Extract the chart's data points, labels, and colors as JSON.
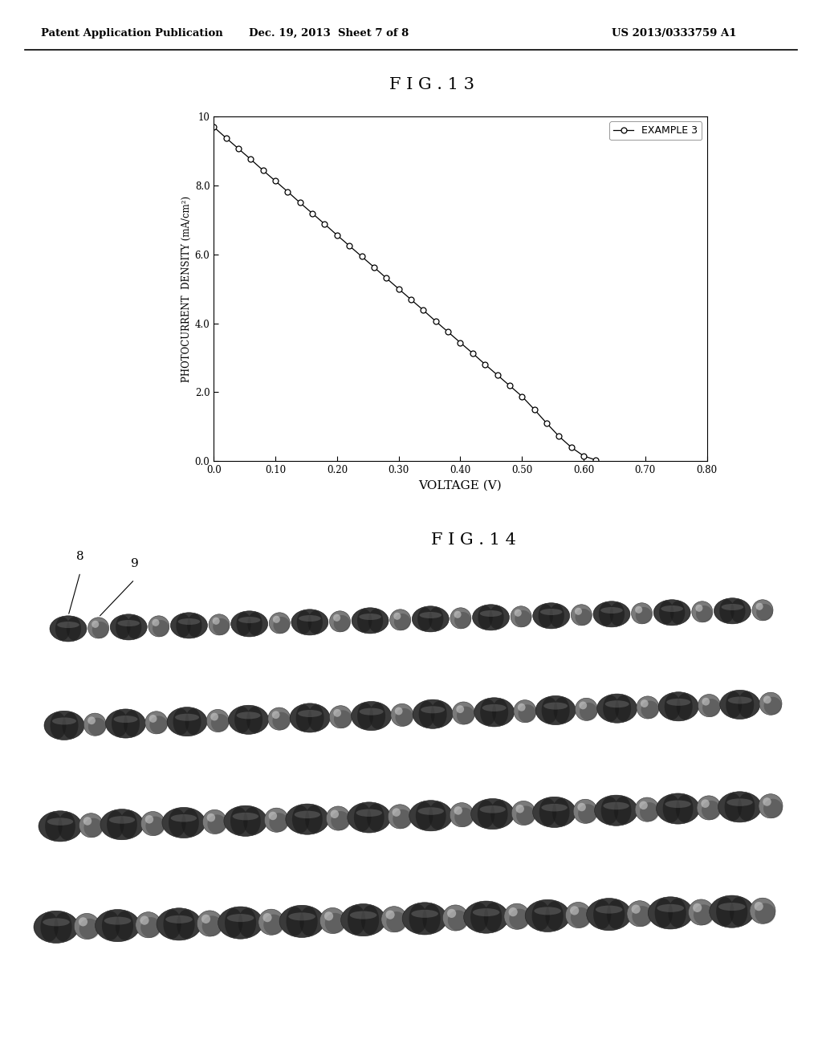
{
  "header_left": "Patent Application Publication",
  "header_mid": "Dec. 19, 2013  Sheet 7 of 8",
  "header_right": "US 2013/0333759 A1",
  "fig13_title": "F I G . 1 3",
  "fig14_title": "F I G . 1 4",
  "xlabel": "VOLTAGE (V)",
  "ylabel": "PHOTOCURRENT  DENSITY (mA/cm²)",
  "legend_label": "EXAMPLE 3",
  "xlim": [
    0.0,
    0.8
  ],
  "ylim": [
    0.0,
    10.0
  ],
  "xticks": [
    0.0,
    0.1,
    0.2,
    0.3,
    0.4,
    0.5,
    0.6,
    0.7,
    0.8
  ],
  "yticks": [
    0.0,
    2.0,
    4.0,
    6.0,
    8.0,
    10.0
  ],
  "xtick_labels": [
    "0.0",
    "0.10",
    "0.20",
    "0.30",
    "0.40",
    "0.50",
    "0.60",
    "0.70",
    "0.80"
  ],
  "ytick_labels": [
    "0.0",
    "2.0",
    "4.0",
    "6.0",
    "8.0",
    "10"
  ],
  "curve_x": [
    0.0,
    0.02,
    0.04,
    0.06,
    0.08,
    0.1,
    0.12,
    0.14,
    0.16,
    0.18,
    0.2,
    0.22,
    0.24,
    0.26,
    0.28,
    0.3,
    0.32,
    0.34,
    0.36,
    0.38,
    0.4,
    0.42,
    0.44,
    0.46,
    0.48,
    0.5,
    0.52,
    0.54,
    0.56,
    0.58,
    0.6,
    0.62
  ],
  "curve_y": [
    9.7,
    9.38,
    9.07,
    8.76,
    8.44,
    8.13,
    7.82,
    7.5,
    7.19,
    6.88,
    6.56,
    6.25,
    5.94,
    5.63,
    5.31,
    5.0,
    4.69,
    4.38,
    4.06,
    3.75,
    3.44,
    3.13,
    2.81,
    2.5,
    2.19,
    1.88,
    1.5,
    1.1,
    0.72,
    0.4,
    0.15,
    0.03
  ],
  "line_color": "#000000",
  "marker_size": 5,
  "background_color": "#ffffff",
  "fig14_label8": "8",
  "fig14_label9": "9"
}
